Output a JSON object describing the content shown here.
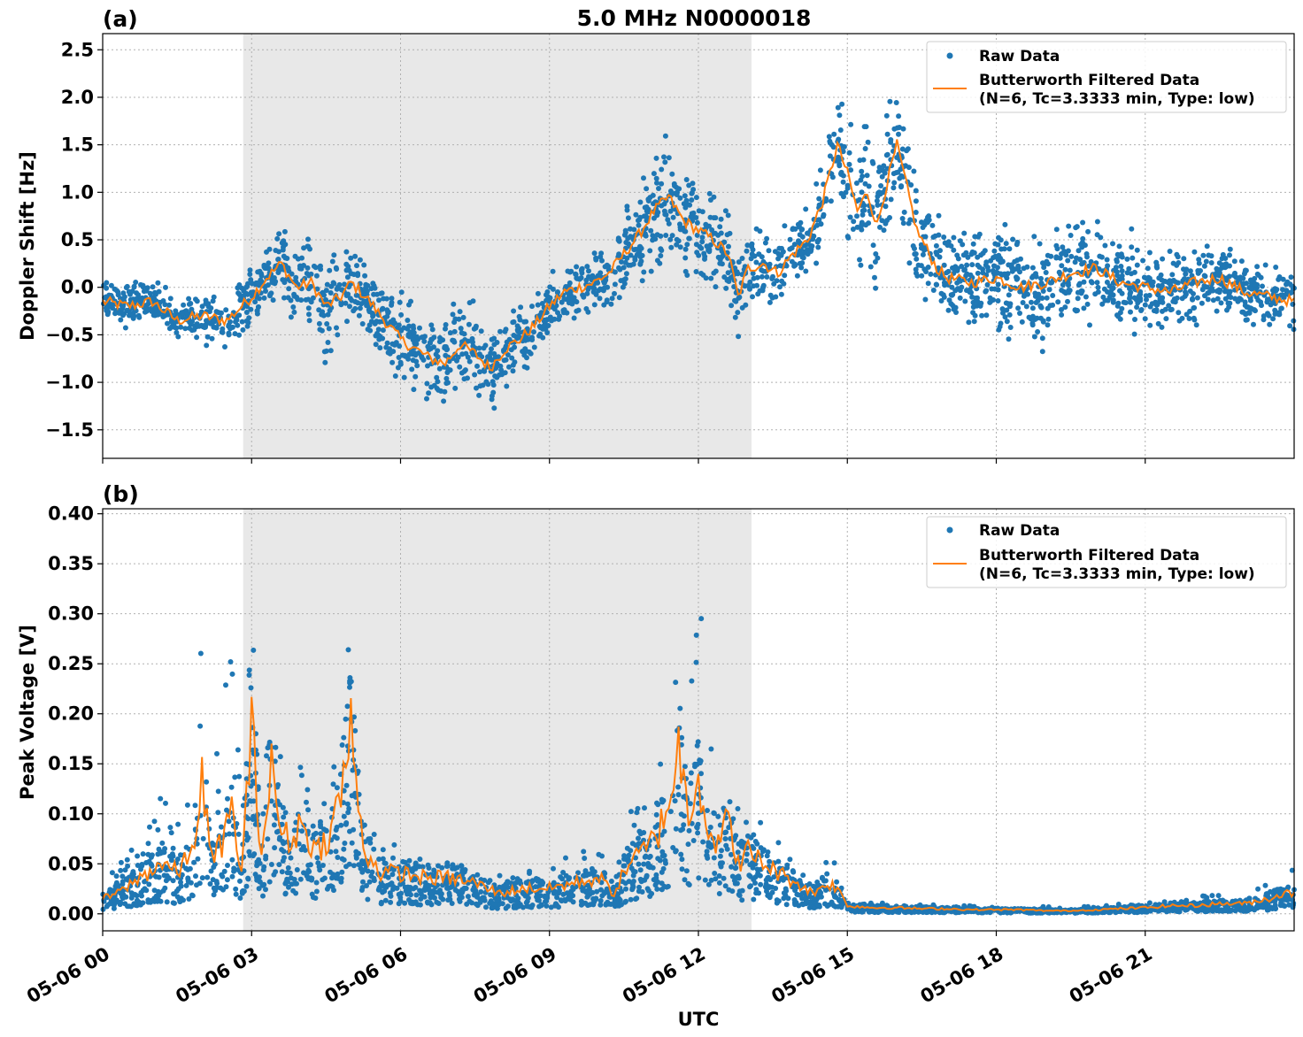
{
  "title": "5.0 MHz N0000018",
  "colors": {
    "raw": "#1f77b4",
    "filtered": "#ff7f0e",
    "shade": "#e8e8e8",
    "grid": "#b0b0b0"
  },
  "chart_data": [
    {
      "type": "scatter",
      "panel_label": "(a)",
      "ylabel": "Doppler Shift [Hz]",
      "xlabel": "",
      "xlim_hours": [
        0,
        24
      ],
      "ylim": [
        -1.8,
        2.67
      ],
      "yticks": [
        -1.5,
        -1.0,
        -0.5,
        0.0,
        0.5,
        1.0,
        1.5,
        2.0,
        2.5
      ],
      "ytick_labels": [
        "−1.5",
        "−1.0",
        "−0.5",
        "0.0",
        "0.5",
        "1.0",
        "1.5",
        "2.0",
        "2.5"
      ],
      "shaded_span_hours": [
        2.83,
        13.07
      ],
      "grid": true,
      "legend_position": "upper right",
      "legend": [
        "Raw Data",
        "Butterworth Filtered Data",
        "(N=6, Tc=3.3333 min, Type: low)"
      ],
      "series": [
        {
          "name": "Butterworth Filtered Data",
          "kind": "line",
          "x_hours": [
            0,
            0.5,
            1,
            1.5,
            2,
            2.5,
            2.8,
            3,
            3.3,
            3.6,
            3.9,
            4.2,
            4.5,
            4.8,
            5,
            5.3,
            5.6,
            6,
            6.3,
            6.6,
            6.9,
            7.2,
            7.5,
            7.8,
            8.1,
            8.4,
            8.7,
            9,
            9.3,
            9.6,
            9.9,
            10.2,
            10.5,
            10.8,
            11.1,
            11.4,
            11.7,
            12,
            12.3,
            12.6,
            12.8,
            13,
            13.3,
            13.6,
            13.9,
            14.2,
            14.5,
            14.8,
            15,
            15.2,
            15.4,
            15.6,
            15.8,
            16,
            16.2,
            16.4,
            16.6,
            16.8,
            17,
            17.5,
            18,
            18.5,
            19,
            19.5,
            20,
            20.5,
            21,
            21.5,
            22,
            22.5,
            23,
            23.5,
            24
          ],
          "values": [
            -0.15,
            -0.2,
            -0.15,
            -0.35,
            -0.3,
            -0.35,
            -0.2,
            -0.1,
            0.1,
            0.25,
            0.0,
            0.05,
            -0.2,
            -0.1,
            0.05,
            -0.1,
            -0.3,
            -0.55,
            -0.65,
            -0.75,
            -0.8,
            -0.6,
            -0.7,
            -0.85,
            -0.65,
            -0.55,
            -0.4,
            -0.2,
            -0.05,
            0.0,
            0.05,
            0.15,
            0.35,
            0.55,
            0.8,
            0.95,
            0.7,
            0.6,
            0.5,
            0.35,
            -0.1,
            0.2,
            0.25,
            0.15,
            0.35,
            0.5,
            0.9,
            1.5,
            1.2,
            0.8,
            1.0,
            0.65,
            1.1,
            1.5,
            1.05,
            0.6,
            0.4,
            0.2,
            0.1,
            0.05,
            0.1,
            0.0,
            0.05,
            0.15,
            0.2,
            0.05,
            0.0,
            -0.05,
            0.05,
            0.1,
            -0.05,
            -0.1,
            -0.15
          ]
        },
        {
          "name": "Raw Data",
          "kind": "scatter",
          "spread": [
            0.2,
            0.2,
            0.25,
            0.2,
            0.25,
            0.3,
            0.3,
            0.35,
            0.35,
            0.35,
            0.4,
            0.45,
            0.5,
            0.45,
            0.4,
            0.4,
            0.4,
            0.45,
            0.45,
            0.45,
            0.45,
            0.45,
            0.45,
            0.45,
            0.35,
            0.3,
            0.3,
            0.3,
            0.3,
            0.3,
            0.3,
            0.35,
            0.4,
            0.5,
            0.6,
            0.6,
            0.55,
            0.5,
            0.45,
            0.45,
            0.4,
            0.4,
            0.35,
            0.35,
            0.4,
            0.45,
            0.5,
            0.6,
            0.6,
            0.6,
            0.7,
            0.7,
            0.7,
            0.75,
            0.7,
            0.6,
            0.55,
            0.5,
            0.5,
            0.55,
            0.6,
            0.65,
            0.65,
            0.6,
            0.55,
            0.5,
            0.45,
            0.4,
            0.4,
            0.35,
            0.35,
            0.3,
            0.3
          ]
        }
      ]
    },
    {
      "type": "scatter",
      "panel_label": "(b)",
      "ylabel": "Peak Voltage [V]",
      "xlabel": "UTC",
      "xlim_hours": [
        0,
        24
      ],
      "ylim": [
        -0.017,
        0.405
      ],
      "yticks": [
        0.0,
        0.05,
        0.1,
        0.15,
        0.2,
        0.25,
        0.3,
        0.35,
        0.4
      ],
      "ytick_labels": [
        "0.00",
        "0.05",
        "0.10",
        "0.15",
        "0.20",
        "0.25",
        "0.30",
        "0.35",
        "0.40"
      ],
      "xticks_hours": [
        0,
        3,
        6,
        9,
        12,
        15,
        18,
        21
      ],
      "xtick_labels": [
        "05-06 00",
        "05-06 03",
        "05-06 06",
        "05-06 09",
        "05-06 12",
        "05-06 15",
        "05-06 18",
        "05-06 21"
      ],
      "shaded_span_hours": [
        2.83,
        13.07
      ],
      "grid": true,
      "legend_position": "upper right",
      "legend": [
        "Raw Data",
        "Butterworth Filtered Data",
        "(N=6, Tc=3.3333 min, Type: low)"
      ],
      "series": [
        {
          "name": "Butterworth Filtered Data",
          "kind": "line",
          "x_hours": [
            0,
            0.3,
            0.6,
            0.9,
            1.2,
            1.5,
            1.8,
            2.0,
            2.2,
            2.4,
            2.6,
            2.8,
            3.0,
            3.2,
            3.4,
            3.6,
            3.8,
            4.0,
            4.3,
            4.6,
            4.9,
            5.0,
            5.1,
            5.3,
            5.6,
            6,
            6.5,
            7,
            7.5,
            8,
            8.5,
            9,
            9.5,
            10,
            10.3,
            10.6,
            10.9,
            11.2,
            11.4,
            11.6,
            11.8,
            12.0,
            12.2,
            12.4,
            12.6,
            12.8,
            13,
            13.3,
            13.6,
            14,
            14.3,
            14.6,
            14.8,
            15,
            15.5,
            16,
            16.5,
            17,
            17.5,
            18,
            18.5,
            19,
            19.5,
            20,
            20.5,
            21,
            21.5,
            22,
            22.5,
            23,
            23.5,
            23.8,
            24
          ],
          "values": [
            0.015,
            0.02,
            0.03,
            0.04,
            0.05,
            0.04,
            0.06,
            0.13,
            0.05,
            0.07,
            0.1,
            0.04,
            0.18,
            0.06,
            0.14,
            0.08,
            0.07,
            0.09,
            0.06,
            0.08,
            0.14,
            0.19,
            0.12,
            0.06,
            0.04,
            0.04,
            0.035,
            0.035,
            0.03,
            0.02,
            0.025,
            0.025,
            0.03,
            0.035,
            0.02,
            0.05,
            0.06,
            0.08,
            0.11,
            0.16,
            0.1,
            0.14,
            0.08,
            0.07,
            0.09,
            0.05,
            0.06,
            0.05,
            0.04,
            0.03,
            0.02,
            0.03,
            0.025,
            0.008,
            0.006,
            0.006,
            0.005,
            0.005,
            0.004,
            0.004,
            0.004,
            0.003,
            0.003,
            0.004,
            0.005,
            0.006,
            0.008,
            0.008,
            0.01,
            0.01,
            0.015,
            0.02,
            0.02
          ]
        },
        {
          "name": "Raw Data",
          "kind": "scatter",
          "upper": [
            0.04,
            0.05,
            0.07,
            0.09,
            0.12,
            0.1,
            0.16,
            0.3,
            0.12,
            0.2,
            0.3,
            0.1,
            0.3,
            0.12,
            0.28,
            0.16,
            0.15,
            0.2,
            0.12,
            0.18,
            0.26,
            0.33,
            0.2,
            0.1,
            0.07,
            0.07,
            0.06,
            0.06,
            0.05,
            0.04,
            0.045,
            0.05,
            0.06,
            0.07,
            0.04,
            0.1,
            0.12,
            0.16,
            0.25,
            0.34,
            0.2,
            0.38,
            0.22,
            0.14,
            0.16,
            0.12,
            0.12,
            0.1,
            0.08,
            0.06,
            0.04,
            0.06,
            0.05,
            0.015,
            0.012,
            0.01,
            0.009,
            0.009,
            0.008,
            0.008,
            0.008,
            0.007,
            0.007,
            0.008,
            0.01,
            0.012,
            0.015,
            0.018,
            0.02,
            0.02,
            0.03,
            0.04,
            0.05
          ]
        }
      ]
    }
  ]
}
